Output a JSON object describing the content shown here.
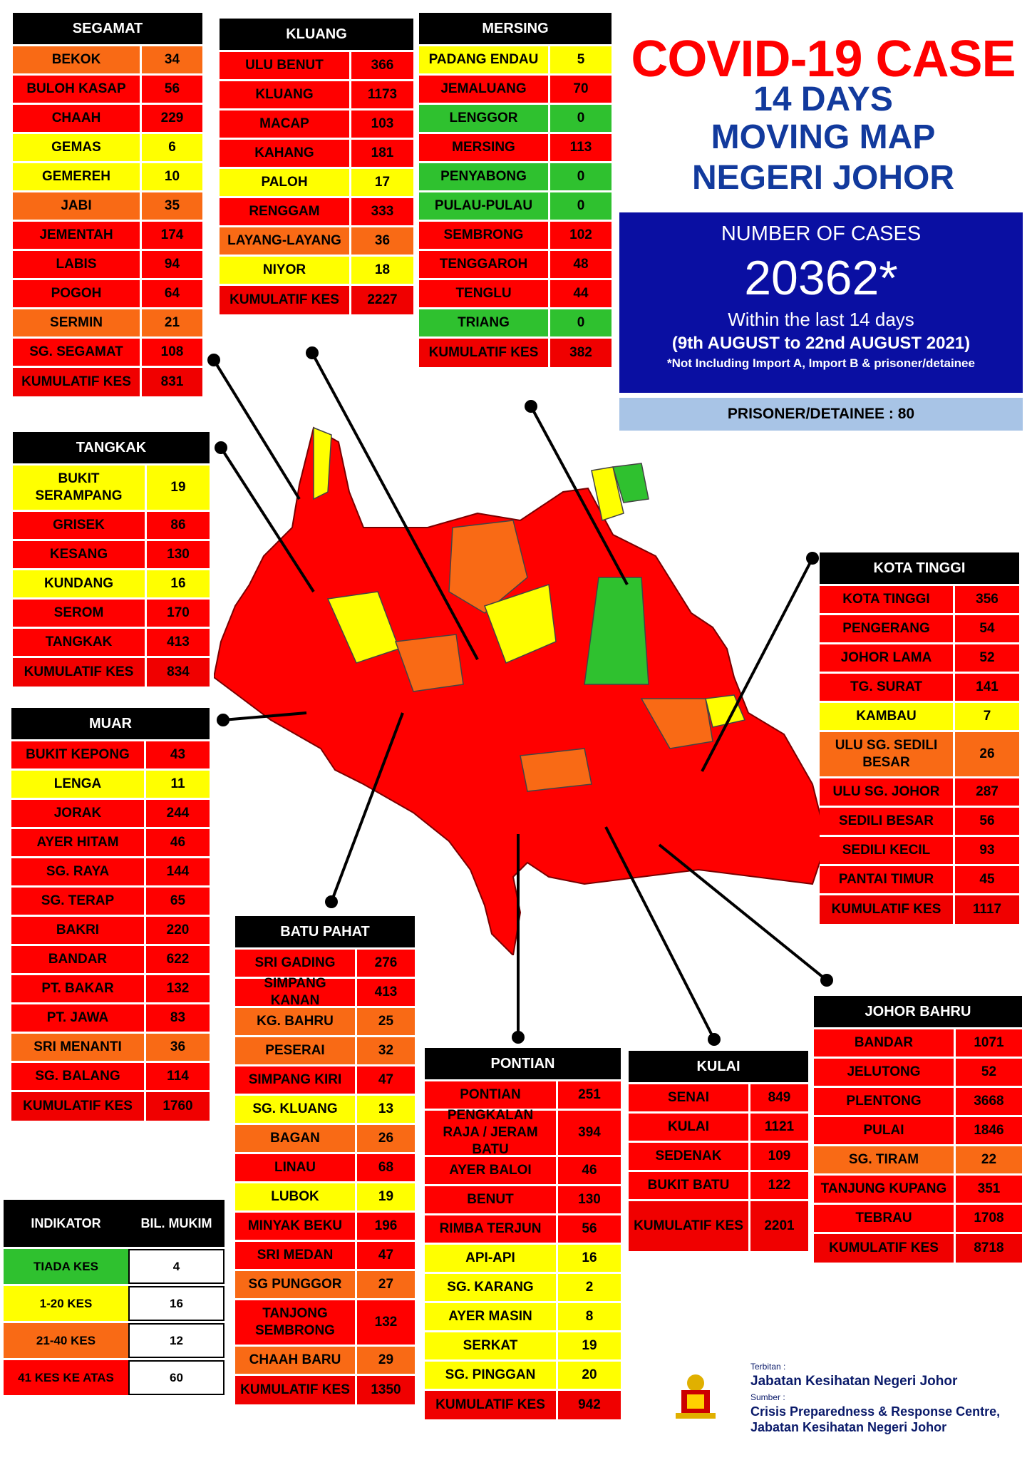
{
  "title": {
    "line1": "COVID-19 CASE",
    "line2": "14 DAYS",
    "line3": "MOVING MAP",
    "line4": "NEGERI JOHOR"
  },
  "summary": {
    "label": "NUMBER OF CASES",
    "total": "20362*",
    "period": "Within the last 14 days",
    "dates": "(9th AUGUST  to 22nd AUGUST 2021)",
    "note": "*Not Including Import A, Import B & prisoner/detainee",
    "prisoner": "PRISONER/DETAINEE : 80"
  },
  "colors": {
    "red": "#ff0000",
    "orange": "#f96a15",
    "yellow": "#ffff00",
    "green": "#2fc12f",
    "navy": "#0a0fa2",
    "lightblue": "#a8c4e6"
  },
  "districts": {
    "segamat": {
      "name": "SEGAMAT",
      "rows": [
        [
          "BEKOK",
          "34",
          "ora"
        ],
        [
          "BULOH KASAP",
          "56",
          "red"
        ],
        [
          "CHAAH",
          "229",
          "red"
        ],
        [
          "GEMAS",
          "6",
          "yel"
        ],
        [
          "GEMEREH",
          "10",
          "yel"
        ],
        [
          "JABI",
          "35",
          "ora"
        ],
        [
          "JEMENTAH",
          "174",
          "red"
        ],
        [
          "LABIS",
          "94",
          "red"
        ],
        [
          "POGOH",
          "64",
          "red"
        ],
        [
          "SERMIN",
          "21",
          "ora"
        ],
        [
          "SG. SEGAMAT",
          "108",
          "red"
        ]
      ],
      "kumulatif": "831"
    },
    "kluang": {
      "name": "KLUANG",
      "rows": [
        [
          "ULU BENUT",
          "366",
          "red"
        ],
        [
          "KLUANG",
          "1173",
          "red"
        ],
        [
          "MACAP",
          "103",
          "red"
        ],
        [
          "KAHANG",
          "181",
          "red"
        ],
        [
          "PALOH",
          "17",
          "yel"
        ],
        [
          "RENGGAM",
          "333",
          "red"
        ],
        [
          "LAYANG-LAYANG",
          "36",
          "ora"
        ],
        [
          "NIYOR",
          "18",
          "yel"
        ]
      ],
      "kumulatif": "2227"
    },
    "mersing": {
      "name": "MERSING",
      "rows": [
        [
          "PADANG ENDAU",
          "5",
          "yel"
        ],
        [
          "JEMALUANG",
          "70",
          "red"
        ],
        [
          "LENGGOR",
          "0",
          "grn"
        ],
        [
          "MERSING",
          "113",
          "red"
        ],
        [
          "PENYABONG",
          "0",
          "grn"
        ],
        [
          "PULAU-PULAU",
          "0",
          "grn"
        ],
        [
          "SEMBRONG",
          "102",
          "red"
        ],
        [
          "TENGGAROH",
          "48",
          "red"
        ],
        [
          "TENGLU",
          "44",
          "red"
        ],
        [
          "TRIANG",
          "0",
          "grn"
        ]
      ],
      "kumulatif": "382"
    },
    "tangkak": {
      "name": "TANGKAK",
      "rows": [
        [
          "BUKIT SERAMPANG",
          "19",
          "yel"
        ],
        [
          "GRISEK",
          "86",
          "red"
        ],
        [
          "KESANG",
          "130",
          "red"
        ],
        [
          "KUNDANG",
          "16",
          "yel"
        ],
        [
          "SEROM",
          "170",
          "red"
        ],
        [
          "TANGKAK",
          "413",
          "red"
        ]
      ],
      "kumulatif": "834"
    },
    "muar": {
      "name": "MUAR",
      "rows": [
        [
          "BUKIT KEPONG",
          "43",
          "red"
        ],
        [
          "LENGA",
          "11",
          "yel"
        ],
        [
          "JORAK",
          "244",
          "red"
        ],
        [
          "AYER HITAM",
          "46",
          "red"
        ],
        [
          "SG. RAYA",
          "144",
          "red"
        ],
        [
          "SG. TERAP",
          "65",
          "red"
        ],
        [
          "BAKRI",
          "220",
          "red"
        ],
        [
          "BANDAR",
          "622",
          "red"
        ],
        [
          "PT. BAKAR",
          "132",
          "red"
        ],
        [
          "PT. JAWA",
          "83",
          "red"
        ],
        [
          "SRI MENANTI",
          "36",
          "ora"
        ],
        [
          "SG. BALANG",
          "114",
          "red"
        ]
      ],
      "kumulatif": "1760"
    },
    "kotatinggi": {
      "name": "KOTA TINGGI",
      "rows": [
        [
          "KOTA TINGGI",
          "356",
          "red"
        ],
        [
          "PENGERANG",
          "54",
          "red"
        ],
        [
          "JOHOR LAMA",
          "52",
          "red"
        ],
        [
          "TG. SURAT",
          "141",
          "red"
        ],
        [
          "KAMBAU",
          "7",
          "yel"
        ],
        [
          "ULU SG. SEDILI BESAR",
          "26",
          "ora"
        ],
        [
          "ULU  SG. JOHOR",
          "287",
          "red"
        ],
        [
          "SEDILI BESAR",
          "56",
          "red"
        ],
        [
          "SEDILI KECIL",
          "93",
          "red"
        ],
        [
          "PANTAI TIMUR",
          "45",
          "red"
        ]
      ],
      "kumulatif": "1117"
    },
    "batupahat": {
      "name": "BATU PAHAT",
      "rows": [
        [
          "SRI GADING",
          "276",
          "red"
        ],
        [
          "SIMPANG KANAN",
          "413",
          "red"
        ],
        [
          "KG. BAHRU",
          "25",
          "ora"
        ],
        [
          "PESERAI",
          "32",
          "ora"
        ],
        [
          "SIMPANG KIRI",
          "47",
          "red"
        ],
        [
          "SG. KLUANG",
          "13",
          "yel"
        ],
        [
          "BAGAN",
          "26",
          "ora"
        ],
        [
          "LINAU",
          "68",
          "red"
        ],
        [
          "LUBOK",
          "19",
          "yel"
        ],
        [
          "MINYAK BEKU",
          "196",
          "red"
        ],
        [
          "SRI MEDAN",
          "47",
          "red"
        ],
        [
          "SG PUNGGOR",
          "27",
          "ora"
        ],
        [
          "TANJONG SEMBRONG",
          "132",
          "red"
        ],
        [
          "CHAAH BARU",
          "29",
          "ora"
        ]
      ],
      "kumulatif": "1350"
    },
    "pontian": {
      "name": "PONTIAN",
      "rows": [
        [
          "PONTIAN",
          "251",
          "red"
        ],
        [
          "PENGKALAN RAJA / JERAM BATU",
          "394",
          "red"
        ],
        [
          "AYER BALOI",
          "46",
          "red"
        ],
        [
          "BENUT",
          "130",
          "red"
        ],
        [
          "RIMBA TERJUN",
          "56",
          "red"
        ],
        [
          "API-API",
          "16",
          "yel"
        ],
        [
          "SG. KARANG",
          "2",
          "yel"
        ],
        [
          "AYER MASIN",
          "8",
          "yel"
        ],
        [
          "SERKAT",
          "19",
          "yel"
        ],
        [
          "SG. PINGGAN",
          "20",
          "yel"
        ]
      ],
      "kumulatif": "942"
    },
    "kulai": {
      "name": "KULAI",
      "rows": [
        [
          "SENAI",
          "849",
          "red"
        ],
        [
          "KULAI",
          "1121",
          "red"
        ],
        [
          "SEDENAK",
          "109",
          "red"
        ],
        [
          "BUKIT BATU",
          "122",
          "red"
        ]
      ],
      "kumulatif": "2201"
    },
    "johorbahru": {
      "name": "JOHOR BAHRU",
      "rows": [
        [
          "BANDAR",
          "1071",
          "red"
        ],
        [
          "JELUTONG",
          "52",
          "red"
        ],
        [
          "PLENTONG",
          "3668",
          "red"
        ],
        [
          "PULAI",
          "1846",
          "red"
        ],
        [
          "SG. TIRAM",
          "22",
          "ora"
        ],
        [
          "TANJUNG KUPANG",
          "351",
          "red"
        ],
        [
          "TEBRAU",
          "1708",
          "red"
        ]
      ],
      "kumulatif": "8718"
    }
  },
  "kumulatif_label": "KUMULATIF KES",
  "legend": {
    "h1": "INDIKATOR",
    "h2": "BIL. MUKIM",
    "rows": [
      [
        "TIADA KES",
        "4",
        "grn"
      ],
      [
        "1-20 KES",
        "16",
        "yel"
      ],
      [
        "21-40 KES",
        "12",
        "ora"
      ],
      [
        "41 KES KE ATAS",
        "60",
        "red"
      ]
    ]
  },
  "footer": {
    "terbitan_label": "Terbitan :",
    "terbitan": "Jabatan Kesihatan Negeri Johor",
    "sumber_label": "Sumber :",
    "sumber1": "Crisis Preparedness & Response Centre,",
    "sumber2": "Jabatan Kesihatan Negeri Johor"
  }
}
